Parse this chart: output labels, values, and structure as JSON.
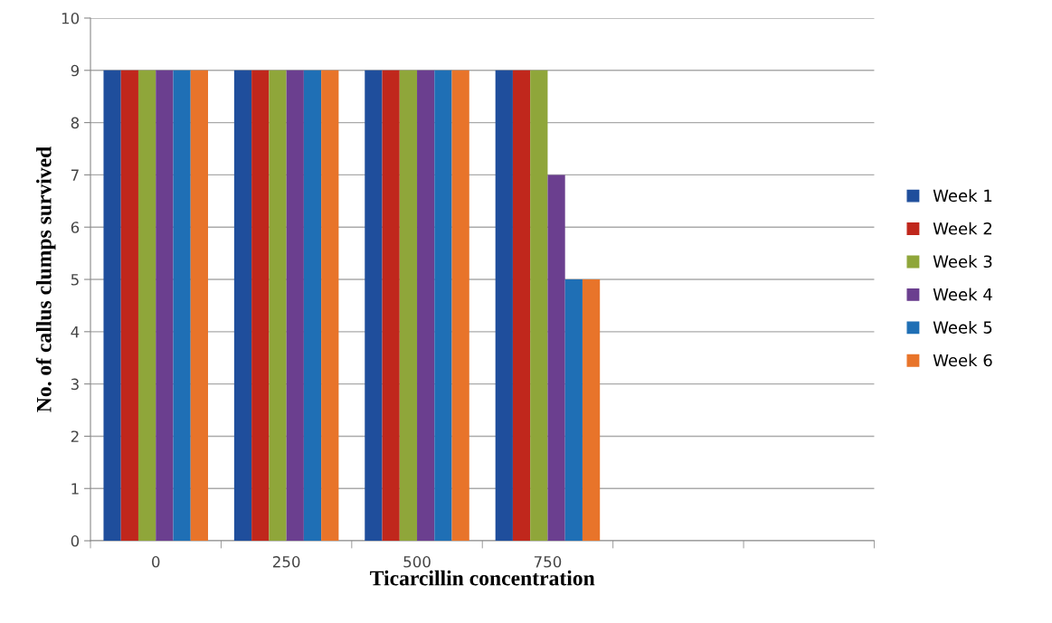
{
  "chart_data": {
    "type": "bar",
    "xlabel": "Ticarcillin concentration",
    "ylabel": "No. of callus clumps survived",
    "categories": [
      "0",
      "250",
      "500",
      "750",
      null,
      null
    ],
    "series": [
      {
        "name": "Week 1",
        "color": "#1f4e9c",
        "values": [
          9,
          9,
          9,
          9,
          null,
          null
        ]
      },
      {
        "name": "Week 2",
        "color": "#c0271c",
        "values": [
          9,
          9,
          9,
          9,
          null,
          null
        ]
      },
      {
        "name": "Week 3",
        "color": "#8fa63a",
        "values": [
          9,
          9,
          9,
          9,
          null,
          null
        ]
      },
      {
        "name": "Week 4",
        "color": "#6b3f8f",
        "values": [
          9,
          9,
          9,
          7,
          null,
          null
        ]
      },
      {
        "name": "Week 5",
        "color": "#1f6fb5",
        "values": [
          9,
          9,
          9,
          5,
          null,
          null
        ]
      },
      {
        "name": "Week 6",
        "color": "#e8742a",
        "values": [
          9,
          9,
          9,
          5,
          null,
          null
        ]
      }
    ],
    "ylim": [
      0,
      10
    ],
    "yticks": [
      0,
      1,
      2,
      3,
      4,
      5,
      6,
      7,
      8,
      9,
      10
    ],
    "grid": "y",
    "legend": "right"
  }
}
